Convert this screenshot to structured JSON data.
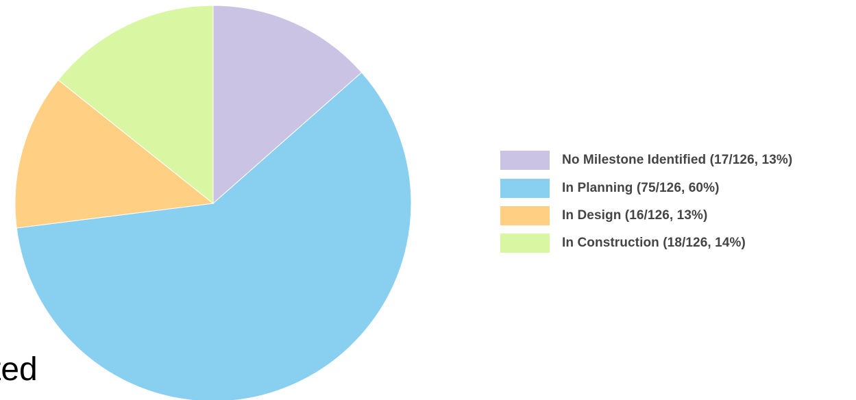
{
  "chart_data": {
    "type": "pie",
    "categories": [
      "No Milestone Identified",
      "In Planning",
      "In Design",
      "In Construction"
    ],
    "values": [
      17,
      75,
      16,
      18
    ],
    "total": 126,
    "percents": [
      13,
      60,
      13,
      14
    ],
    "colors": [
      "#cbc3e3",
      "#89cff0",
      "#ffd083",
      "#d9f6a2"
    ],
    "title": "",
    "legend_position": "right",
    "legend_labels": [
      "No Milestone Identified (17/126, 13%)",
      "In Planning (75/126, 60%)",
      "In Design (16/126, 13%)",
      "In Construction (18/126, 14%)"
    ]
  },
  "stray_text": "ted"
}
